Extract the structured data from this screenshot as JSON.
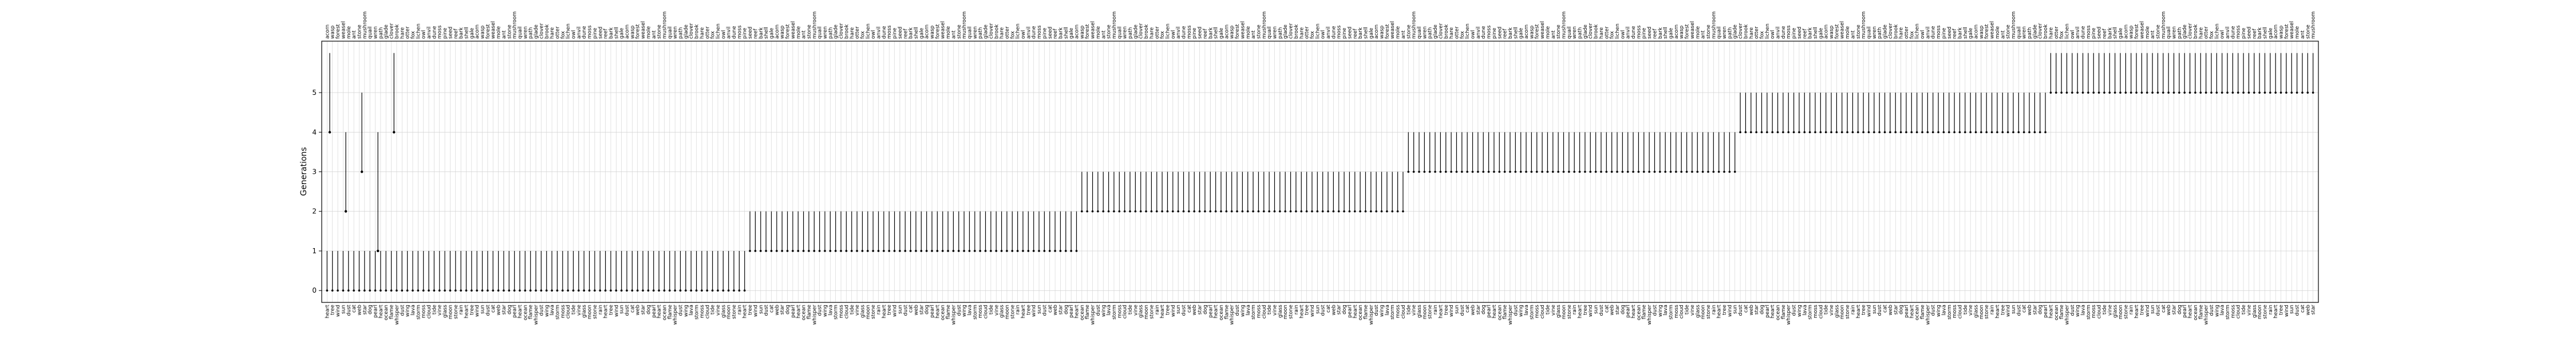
{
  "chart_data": {
    "type": "line",
    "title": "",
    "xlabel": "",
    "ylabel": "Generations",
    "ylim": [
      -0.3,
      6.3
    ],
    "y_ticks": [
      0,
      1,
      2,
      3,
      4,
      5
    ],
    "grid": true,
    "legend": "none",
    "top_words_sample": [
      "acorn",
      "wasp",
      "forest",
      "weasel",
      "mole",
      "ant",
      "stone",
      "mushroom",
      "quail",
      "wren",
      "path",
      "glade",
      "clover",
      "brook",
      "hare",
      "otter",
      "fox",
      "lichen",
      "owl",
      "anvil",
      "dune",
      "moss",
      "pine",
      "seed",
      "reef",
      "bark",
      "shell",
      "gale"
    ],
    "bottom_words_sample": [
      "heart",
      "tree",
      "wind",
      "sun",
      "dust",
      "cat",
      "web",
      "star",
      "dog",
      "pearl",
      "heart",
      "ocean",
      "flame",
      "whisper",
      "dust",
      "wing",
      "lava",
      "storm",
      "moss",
      "cloud",
      "tide",
      "vine",
      "glass",
      "moon",
      "stone",
      "rain"
    ],
    "segments_summary": [
      {
        "from": 0,
        "to": 1,
        "count": 79
      },
      {
        "from": 1,
        "to": 2,
        "count": 62
      },
      {
        "from": 2,
        "to": 3,
        "count": 61
      },
      {
        "from": 3,
        "to": 4,
        "count": 62
      },
      {
        "from": 4,
        "to": 5,
        "count": 58
      },
      {
        "from": 5,
        "to": 6,
        "count": 50
      }
    ]
  },
  "colors": {
    "line": "#000000",
    "grid": "#d0d0d0",
    "axis": "#000000"
  }
}
